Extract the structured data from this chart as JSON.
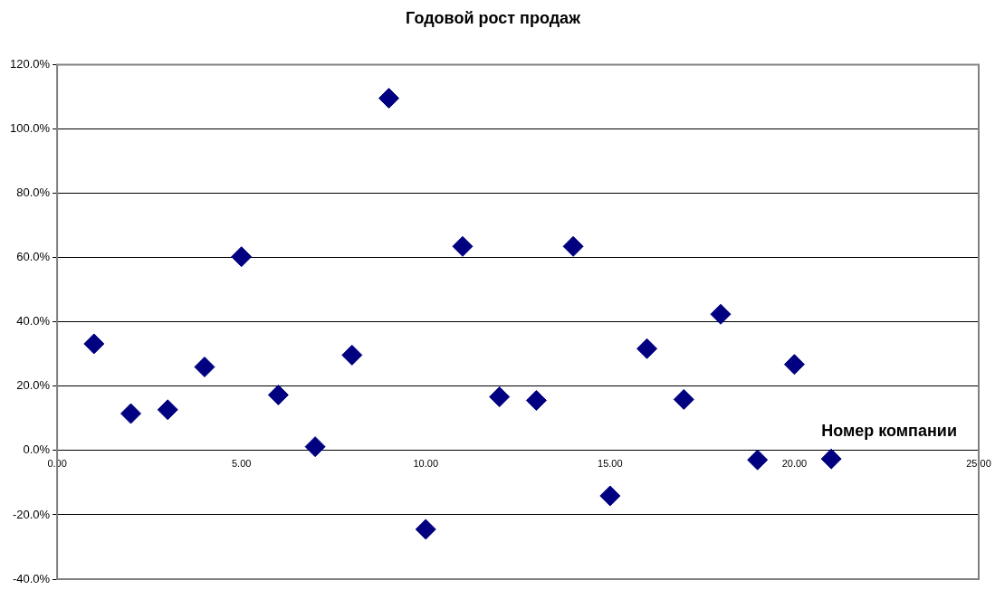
{
  "chart_data": {
    "type": "scatter",
    "title": "Годовой рост продаж",
    "xlabel": "Номер компании",
    "x": [
      1,
      2,
      3,
      4,
      5,
      6,
      7,
      8,
      9,
      10,
      11,
      12,
      13,
      14,
      15,
      16,
      17,
      18,
      19,
      20,
      21
    ],
    "series": [
      {
        "color": "#000080",
        "values": [
          33.2,
          11.5,
          12.7,
          26,
          60.3,
          17.3,
          1.2,
          29.7,
          109.6,
          -24.5,
          63.5,
          16.7,
          15.6,
          63.5,
          -14.1,
          31.7,
          15.9,
          42.4,
          -2.9,
          26.8,
          -2.6
        ]
      }
    ],
    "xlim": [
      0,
      25
    ],
    "xticks": [
      {
        "value": 0,
        "label": "0.00"
      },
      {
        "value": 5,
        "label": "5.00"
      },
      {
        "value": 10,
        "label": "10.00"
      },
      {
        "value": 15,
        "label": "15.00"
      },
      {
        "value": 20,
        "label": "20.00"
      },
      {
        "value": 25,
        "label": "25.00"
      }
    ],
    "ylim": [
      -40,
      120
    ],
    "yticks": [
      {
        "value": -40,
        "label": "-40.0%"
      },
      {
        "value": -20,
        "label": "-20.0%"
      },
      {
        "value": 0,
        "label": "0.0%"
      },
      {
        "value": 20,
        "label": "20.0%"
      },
      {
        "value": 40,
        "label": "40.0%"
      },
      {
        "value": 60,
        "label": "60.0%"
      },
      {
        "value": 80,
        "label": "80.0%"
      },
      {
        "value": 100,
        "label": "100.0%"
      },
      {
        "value": 120,
        "label": "120.0%"
      }
    ],
    "grid": "y",
    "legend": false,
    "marker": "diamond"
  }
}
